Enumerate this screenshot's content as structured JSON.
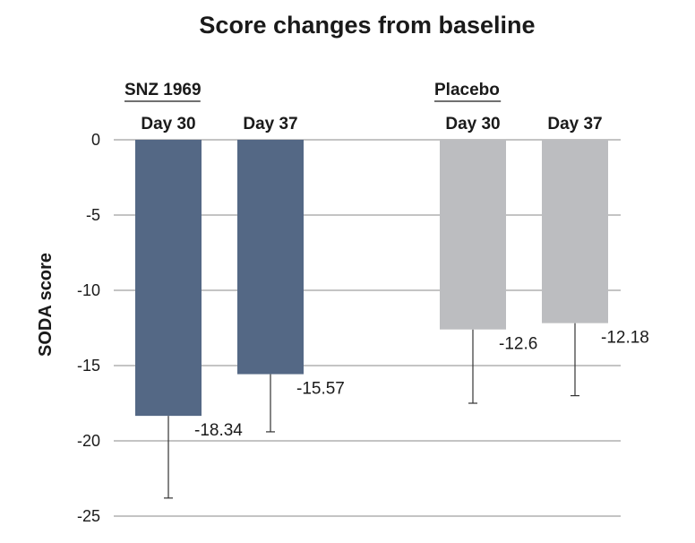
{
  "chart_data": {
    "type": "bar",
    "title": "Score changes from baseline",
    "ylabel": "SODA score",
    "xlabel": "",
    "ylim": [
      -25,
      0
    ],
    "yticks": [
      0,
      -5,
      -10,
      -15,
      -20,
      -25
    ],
    "grid": true,
    "colors": {
      "snz": "#546885",
      "placebo": "#bcbdc0",
      "grid": "#8a8a8a",
      "text": "#1a1a1a"
    },
    "groups": [
      {
        "name": "SNZ 1969",
        "color_key": "snz",
        "bars": [
          {
            "label": "Day 30",
            "value": -18.34,
            "error_bottom": -23.8,
            "value_label": "-18.34"
          },
          {
            "label": "Day 37",
            "value": -15.57,
            "error_bottom": -19.4,
            "value_label": "-15.57"
          }
        ]
      },
      {
        "name": "Placebo",
        "color_key": "placebo",
        "bars": [
          {
            "label": "Day 30",
            "value": -12.6,
            "error_bottom": -17.5,
            "value_label": "-12.6"
          },
          {
            "label": "Day 37",
            "value": -12.18,
            "error_bottom": -17.0,
            "value_label": "-12.18"
          }
        ]
      }
    ]
  }
}
